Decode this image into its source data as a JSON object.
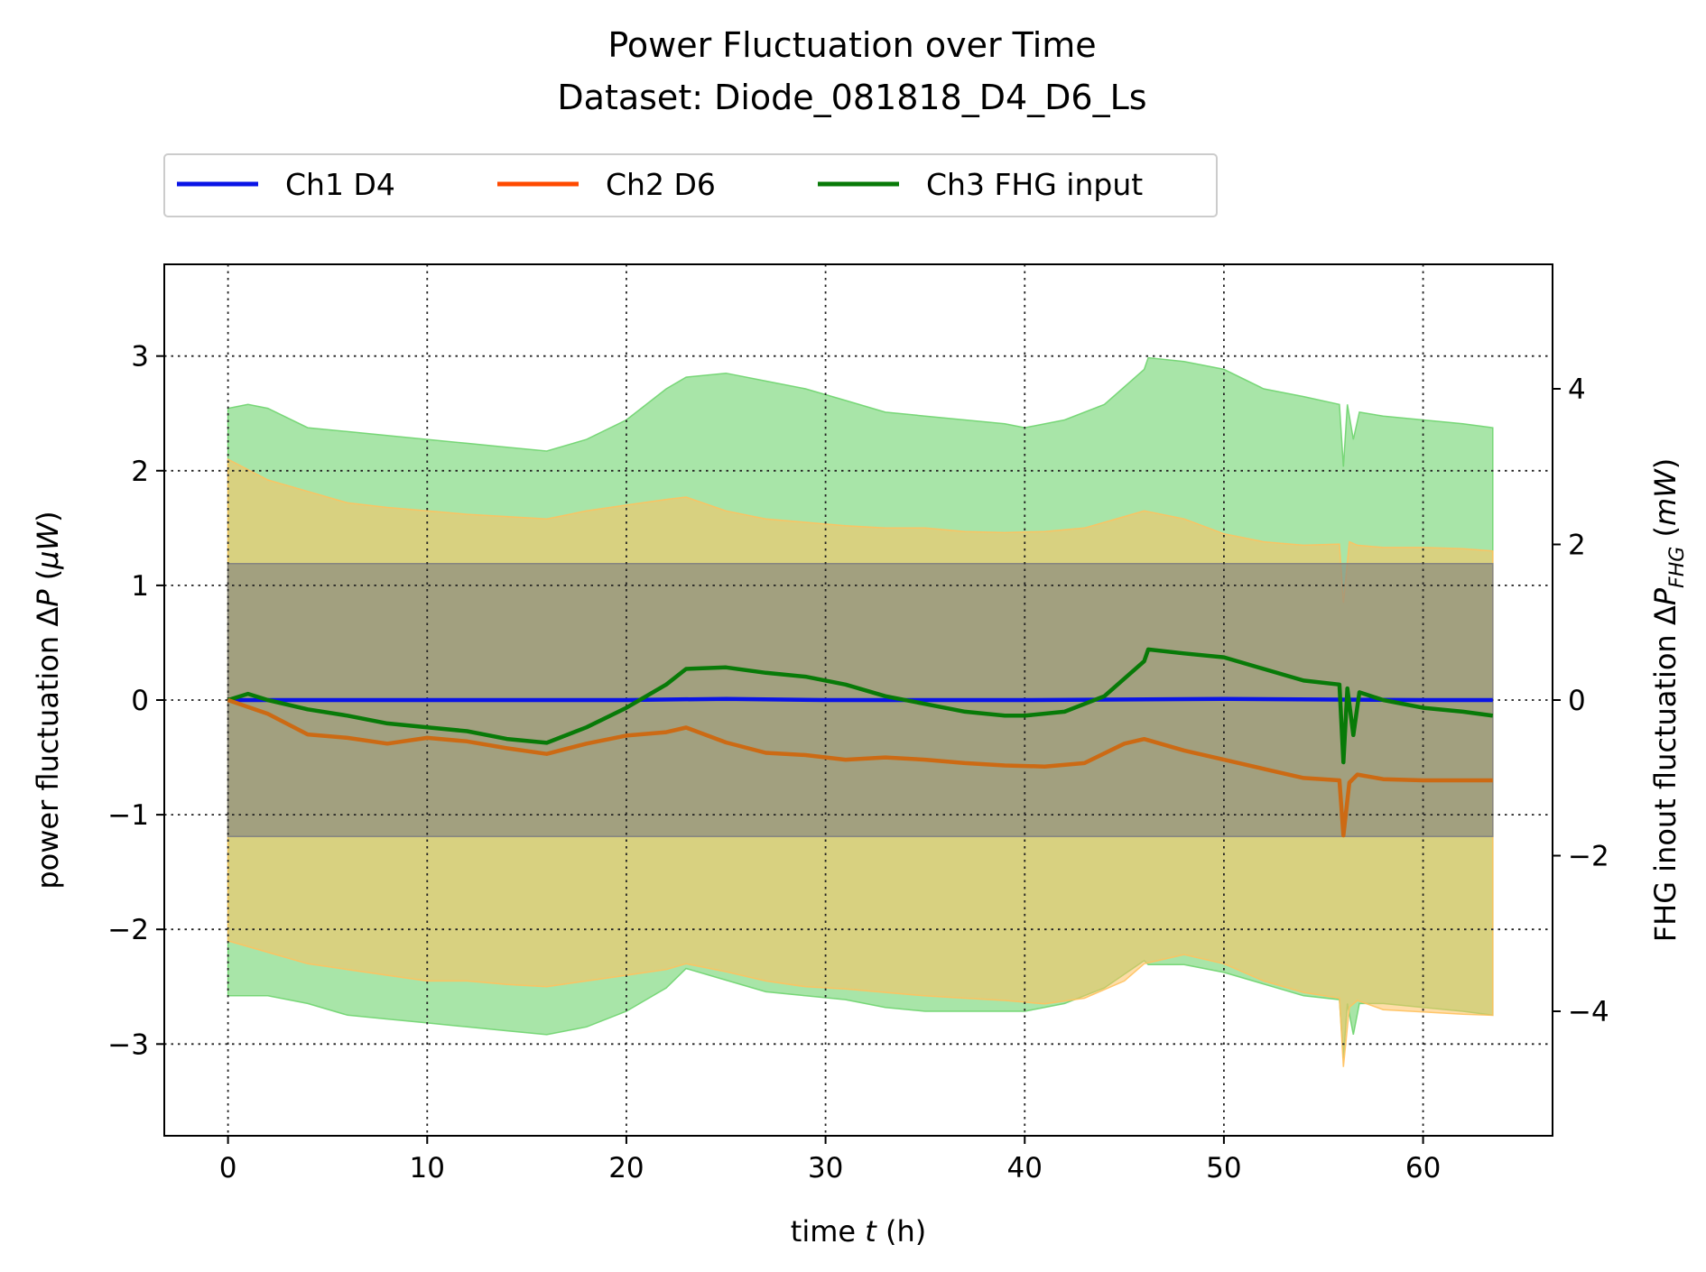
{
  "chart_data": {
    "type": "line",
    "title": "Power Fluctuation over Time",
    "subtitle": "Dataset: Diode_081818_D4_D6_Ls",
    "xlabel": "time t (h)",
    "ylabel": "power fluctuation ΔP (μW)",
    "ylabel_right": "FHG inout fluctuation ΔP_FHG (mW)",
    "xlim": [
      -3.2,
      66.5
    ],
    "ylim": [
      -3.8,
      3.8
    ],
    "ylim_right": [
      -5.6,
      5.6
    ],
    "xticks": [
      0,
      10,
      20,
      30,
      40,
      50,
      60
    ],
    "yticks": [
      -3,
      -2,
      -1,
      0,
      1,
      2,
      3
    ],
    "yticks_right": [
      -4,
      -2,
      0,
      2,
      4
    ],
    "grid": true,
    "legend_position": "top-left, above plot",
    "legend": [
      "Ch1 D4",
      "Ch2 D6",
      "Ch3 FHG input"
    ],
    "series": [
      {
        "name": "Ch1 D4",
        "axis": "left",
        "color": "#0a14e6",
        "band_color": "#7f7f7f",
        "x": [
          0,
          10,
          20,
          25,
          30,
          40,
          50,
          60,
          63.5
        ],
        "values": [
          0,
          0,
          0,
          0.01,
          0,
          0,
          0.01,
          0,
          0
        ],
        "band_lower": [
          -1.19,
          -1.19,
          -1.19,
          -1.19,
          -1.19,
          -1.19,
          -1.19,
          -1.19,
          -1.19
        ],
        "band_upper": [
          1.19,
          1.19,
          1.19,
          1.19,
          1.19,
          1.19,
          1.19,
          1.19,
          1.19
        ]
      },
      {
        "name": "Ch2 D6",
        "axis": "left",
        "color": "#cc6a14",
        "band_color": "#ffc15e",
        "x": [
          0,
          2,
          4,
          6,
          8,
          10,
          12,
          14,
          16,
          18,
          20,
          22,
          23,
          25,
          27,
          29,
          31,
          33,
          35,
          37,
          39,
          41,
          43,
          45,
          46,
          48,
          50,
          52,
          54,
          55.8,
          56,
          56.3,
          56.7,
          58,
          60,
          62,
          63.5
        ],
        "values": [
          0,
          -0.12,
          -0.3,
          -0.33,
          -0.38,
          -0.33,
          -0.36,
          -0.42,
          -0.47,
          -0.38,
          -0.31,
          -0.28,
          -0.24,
          -0.37,
          -0.46,
          -0.48,
          -0.52,
          -0.5,
          -0.52,
          -0.55,
          -0.57,
          -0.58,
          -0.55,
          -0.38,
          -0.34,
          -0.44,
          -0.52,
          -0.6,
          -0.68,
          -0.7,
          -1.18,
          -0.72,
          -0.65,
          -0.69,
          -0.7,
          -0.7,
          -0.7
        ],
        "band_lower": [
          -2.1,
          -2.2,
          -2.3,
          -2.35,
          -2.4,
          -2.45,
          -2.45,
          -2.48,
          -2.5,
          -2.45,
          -2.4,
          -2.35,
          -2.3,
          -2.37,
          -2.45,
          -2.5,
          -2.52,
          -2.55,
          -2.58,
          -2.6,
          -2.62,
          -2.65,
          -2.6,
          -2.45,
          -2.3,
          -2.22,
          -2.3,
          -2.45,
          -2.55,
          -2.6,
          -3.2,
          -2.68,
          -2.62,
          -2.7,
          -2.72,
          -2.74,
          -2.75
        ],
        "band_upper": [
          2.1,
          1.92,
          1.82,
          1.72,
          1.68,
          1.65,
          1.62,
          1.6,
          1.58,
          1.65,
          1.7,
          1.75,
          1.77,
          1.65,
          1.58,
          1.55,
          1.52,
          1.5,
          1.5,
          1.47,
          1.46,
          1.47,
          1.5,
          1.6,
          1.65,
          1.58,
          1.45,
          1.38,
          1.35,
          1.36,
          0.85,
          1.38,
          1.35,
          1.33,
          1.33,
          1.32,
          1.3
        ]
      },
      {
        "name": "Ch3 FHG input",
        "axis": "right",
        "color": "#087a08",
        "band_color": "#6ed46e",
        "x": [
          0,
          1,
          2,
          4,
          6,
          8,
          10,
          12,
          14,
          16,
          18,
          20,
          22,
          23,
          25,
          27,
          29,
          31,
          33,
          35,
          37,
          39,
          40,
          42,
          44,
          46,
          46.2,
          48,
          50,
          52,
          54,
          55.8,
          56,
          56.2,
          56.5,
          56.8,
          58,
          60,
          62,
          63.5
        ],
        "values": [
          0,
          0.08,
          0,
          -0.12,
          -0.2,
          -0.3,
          -0.35,
          -0.4,
          -0.5,
          -0.55,
          -0.35,
          -0.1,
          0.2,
          0.4,
          0.42,
          0.35,
          0.3,
          0.2,
          0.05,
          -0.05,
          -0.15,
          -0.2,
          -0.2,
          -0.15,
          0.05,
          0.5,
          0.65,
          0.6,
          0.55,
          0.4,
          0.25,
          0.2,
          -0.8,
          0.15,
          -0.45,
          0.1,
          0,
          -0.1,
          -0.15,
          -0.2
        ],
        "band_lower": [
          -3.8,
          -3.8,
          -3.8,
          -3.9,
          -4.05,
          -4.1,
          -4.15,
          -4.2,
          -4.25,
          -4.3,
          -4.2,
          -4.0,
          -3.7,
          -3.45,
          -3.6,
          -3.75,
          -3.8,
          -3.85,
          -3.95,
          -4.0,
          -4.0,
          -4.0,
          -4.0,
          -3.9,
          -3.7,
          -3.35,
          -3.4,
          -3.4,
          -3.5,
          -3.65,
          -3.8,
          -3.85,
          -4.6,
          -3.9,
          -4.3,
          -3.9,
          -3.9,
          -3.95,
          -4.0,
          -4.05
        ],
        "band_upper": [
          3.75,
          3.8,
          3.75,
          3.5,
          3.45,
          3.4,
          3.35,
          3.3,
          3.25,
          3.2,
          3.35,
          3.6,
          4.0,
          4.15,
          4.2,
          4.1,
          4.0,
          3.85,
          3.7,
          3.65,
          3.6,
          3.55,
          3.5,
          3.6,
          3.8,
          4.25,
          4.4,
          4.35,
          4.25,
          4.0,
          3.9,
          3.8,
          3.0,
          3.8,
          3.35,
          3.7,
          3.65,
          3.6,
          3.55,
          3.5
        ]
      }
    ]
  }
}
